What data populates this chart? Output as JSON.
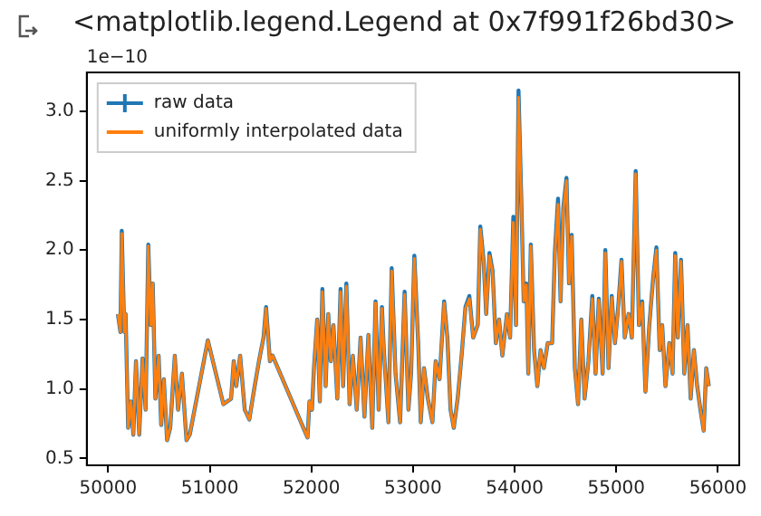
{
  "chart_data": {
    "type": "line",
    "title": "<matplotlib.legend.Legend at 0x7f991f26bd30>",
    "annotations": [
      "1e−10"
    ],
    "x": [
      50096,
      50121,
      50134,
      50159,
      50172,
      50197,
      50223,
      50248,
      50274,
      50306,
      50338,
      50369,
      50395,
      50420,
      50439,
      50465,
      50497,
      50522,
      50548,
      50580,
      50611,
      50656,
      50688,
      50726,
      50771,
      50803,
      50981,
      51134,
      51210,
      51236,
      51261,
      51299,
      51344,
      51389,
      51433,
      51484,
      51529,
      51554,
      51592,
      51618,
      51962,
      51981,
      52006,
      52025,
      52057,
      52083,
      52108,
      52140,
      52166,
      52191,
      52217,
      52255,
      52287,
      52312,
      52344,
      52376,
      52408,
      52446,
      52484,
      52522,
      52561,
      52599,
      52631,
      52662,
      52694,
      52713,
      52758,
      52790,
      52828,
      52873,
      52917,
      52955,
      52981,
      53013,
      53051,
      53076,
      53108,
      53146,
      53191,
      53223,
      53261,
      53306,
      53338,
      53369,
      53401,
      53439,
      53478,
      53516,
      53554,
      53592,
      53637,
      53662,
      53694,
      53720,
      53752,
      53783,
      53815,
      53847,
      53879,
      53924,
      53955,
      53987,
      54013,
      54038,
      54064,
      54089,
      54115,
      54134,
      54159,
      54191,
      54223,
      54255,
      54287,
      54325,
      54369,
      54395,
      54427,
      54452,
      54478,
      54510,
      54535,
      54561,
      54592,
      54624,
      54656,
      54688,
      54726,
      54764,
      54796,
      54828,
      54866,
      54892,
      54924,
      54955,
      54987,
      55019,
      55051,
      55083,
      55121,
      55153,
      55191,
      55223,
      55255,
      55287,
      55325,
      55363,
      55395,
      55427,
      55452,
      55484,
      55522,
      55554,
      55580,
      55605,
      55637,
      55669,
      55701,
      55732,
      55764,
      55796,
      55828,
      55860,
      55885,
      55911
    ],
    "series": [
      {
        "name": "raw data",
        "color": "#1f77b4",
        "values": [
          1.54,
          1.41,
          2.14,
          1.41,
          1.54,
          0.72,
          0.91,
          0.67,
          1.2,
          0.67,
          1.22,
          0.85,
          2.04,
          1.46,
          1.76,
          0.93,
          1.24,
          0.74,
          1.07,
          0.63,
          0.72,
          1.24,
          0.85,
          1.11,
          0.63,
          0.67,
          1.35,
          0.89,
          0.93,
          1.2,
          1.02,
          1.24,
          0.85,
          0.78,
          0.98,
          1.2,
          1.37,
          1.59,
          1.2,
          1.24,
          0.65,
          0.91,
          0.85,
          1.15,
          1.5,
          0.91,
          1.72,
          1.02,
          1.54,
          1.2,
          1.46,
          0.93,
          1.72,
          1.02,
          1.76,
          0.89,
          1.24,
          0.85,
          1.37,
          0.8,
          1.39,
          0.72,
          1.63,
          0.85,
          1.59,
          1.28,
          0.76,
          1.87,
          1.11,
          0.76,
          1.7,
          0.85,
          1.11,
          1.96,
          1.33,
          0.76,
          1.15,
          0.93,
          0.76,
          1.2,
          1.07,
          1.63,
          1.37,
          0.85,
          0.72,
          0.93,
          1.24,
          1.59,
          1.67,
          1.37,
          1.46,
          2.17,
          1.93,
          1.54,
          1.98,
          1.85,
          1.33,
          1.5,
          1.24,
          1.54,
          1.37,
          2.24,
          1.46,
          3.15,
          2.41,
          1.63,
          1.76,
          1.11,
          2.04,
          1.28,
          1.02,
          1.28,
          1.15,
          1.33,
          1.33,
          1.98,
          2.37,
          1.63,
          2.3,
          2.52,
          1.76,
          2.11,
          1.15,
          0.89,
          1.5,
          0.93,
          1.2,
          1.67,
          1.11,
          1.65,
          1.11,
          2.0,
          1.15,
          1.67,
          1.33,
          1.59,
          1.93,
          1.37,
          1.54,
          1.37,
          2.57,
          1.46,
          1.63,
          0.98,
          1.46,
          1.8,
          2.02,
          1.28,
          1.46,
          1.02,
          1.33,
          1.11,
          1.98,
          1.37,
          1.93,
          1.11,
          1.46,
          0.93,
          1.28,
          1.02,
          0.85,
          0.7,
          1.15,
          1.02
        ]
      },
      {
        "name": "uniformly interpolated data",
        "color": "#ff7f0e",
        "values": [
          1.54,
          1.41,
          2.12,
          1.41,
          1.54,
          0.72,
          0.91,
          0.67,
          1.2,
          0.67,
          1.22,
          0.85,
          2.03,
          1.46,
          1.76,
          0.93,
          1.24,
          0.74,
          1.07,
          0.63,
          0.72,
          1.24,
          0.85,
          1.11,
          0.63,
          0.67,
          1.35,
          0.89,
          0.93,
          1.2,
          1.02,
          1.24,
          0.85,
          0.78,
          0.98,
          1.2,
          1.37,
          1.58,
          1.2,
          1.24,
          0.65,
          0.91,
          0.85,
          1.15,
          1.5,
          0.91,
          1.7,
          1.02,
          1.54,
          1.2,
          1.46,
          0.93,
          1.7,
          1.02,
          1.74,
          0.89,
          1.24,
          0.85,
          1.37,
          0.8,
          1.39,
          0.72,
          1.62,
          0.85,
          1.58,
          1.28,
          0.76,
          1.85,
          1.11,
          0.76,
          1.68,
          0.85,
          1.11,
          1.94,
          1.33,
          0.76,
          1.15,
          0.93,
          0.76,
          1.2,
          1.07,
          1.62,
          1.37,
          0.85,
          0.72,
          0.93,
          1.24,
          1.58,
          1.65,
          1.37,
          1.46,
          2.15,
          1.92,
          1.54,
          1.96,
          1.84,
          1.33,
          1.5,
          1.24,
          1.54,
          1.37,
          2.2,
          1.46,
          3.1,
          2.4,
          1.63,
          1.75,
          1.11,
          2.03,
          1.28,
          1.02,
          1.28,
          1.15,
          1.33,
          1.33,
          1.96,
          2.33,
          1.63,
          2.28,
          2.5,
          1.76,
          2.1,
          1.15,
          0.89,
          1.5,
          0.93,
          1.2,
          1.65,
          1.11,
          1.64,
          1.11,
          1.98,
          1.15,
          1.66,
          1.33,
          1.58,
          1.92,
          1.37,
          1.54,
          1.37,
          2.55,
          1.46,
          1.62,
          0.98,
          1.46,
          1.79,
          2.0,
          1.28,
          1.46,
          1.02,
          1.33,
          1.11,
          1.96,
          1.37,
          1.92,
          1.11,
          1.46,
          0.93,
          1.28,
          1.02,
          0.85,
          0.7,
          1.15,
          1.02
        ]
      }
    ],
    "xlim": [
      49790,
      56210
    ],
    "xticks": [
      50000,
      51000,
      52000,
      53000,
      54000,
      55000,
      56000
    ],
    "ylim": [
      0.45,
      3.28
    ],
    "yticks": [
      {
        "value": 0.5,
        "label": "0.5"
      },
      {
        "value": 1,
        "label": "1.0"
      },
      {
        "value": 1.5,
        "label": "1.5"
      },
      {
        "value": 2,
        "label": "2.0"
      },
      {
        "value": 2.5,
        "label": "2.5"
      },
      {
        "value": 3,
        "label": "3.0"
      }
    ],
    "legend": "top left",
    "grid": false,
    "marker": "none",
    "line_style": "solid"
  }
}
